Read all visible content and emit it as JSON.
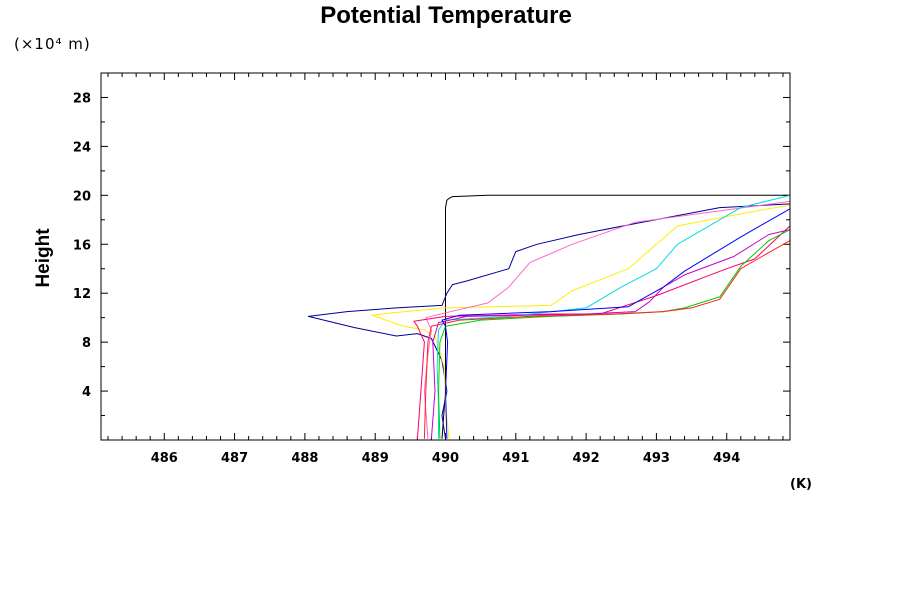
{
  "chart_data": {
    "type": "line",
    "title": "Potential Temperature",
    "ylabel": "Height",
    "y_unit_label": "(×10⁴ m)",
    "xlabel": "(K)",
    "xlim": [
      485.1,
      494.9
    ],
    "ylim": [
      0,
      30
    ],
    "x_ticks": [
      486,
      487,
      488,
      489,
      490,
      491,
      492,
      493,
      494
    ],
    "y_ticks": [
      4,
      8,
      12,
      16,
      20,
      24,
      28
    ],
    "legend": "none",
    "grid": false,
    "series": [
      {
        "color": "#000000",
        "x": [
          489.95,
          490.0,
          490.0,
          490.0,
          490.0,
          490.02,
          490.05,
          490.1,
          490.6,
          492.0,
          494.9
        ],
        "y": [
          0.1,
          4,
          9.0,
          11.5,
          19.0,
          19.6,
          19.75,
          19.9,
          20.0,
          20.0,
          20.0
        ]
      },
      {
        "color": "#000099",
        "x": [
          490.0,
          489.95,
          490.02,
          489.95,
          489.8,
          489.6,
          489.3,
          488.7,
          488.05,
          488.6,
          489.3,
          489.95,
          490.02,
          490.1,
          490.3,
          490.9,
          491.0,
          491.3,
          491.9,
          492.8,
          493.9,
          494.9
        ],
        "y": [
          0.1,
          2.0,
          4.0,
          6.5,
          8.3,
          8.7,
          8.5,
          9.2,
          10.1,
          10.5,
          10.8,
          11.0,
          12.0,
          12.7,
          13.0,
          14.0,
          15.4,
          16.0,
          16.8,
          17.8,
          19.0,
          19.3
        ]
      },
      {
        "color": "#ffee00",
        "x": [
          490.05,
          490.0,
          489.98,
          489.85,
          489.7,
          489.4,
          488.95,
          489.25,
          490.0,
          491.5,
          491.8,
          492.6,
          493.3,
          494.3,
          494.9
        ],
        "y": [
          0.1,
          3.0,
          6.0,
          8.5,
          9.0,
          9.3,
          10.2,
          10.4,
          10.8,
          11.0,
          12.2,
          14.0,
          17.5,
          18.6,
          19.2
        ]
      },
      {
        "color": "#ff66cc",
        "x": [
          489.75,
          489.7,
          489.75,
          489.8,
          489.72,
          490.0,
          490.6,
          490.9,
          491.2,
          491.8,
          492.7,
          494.9
        ],
        "y": [
          0.1,
          4.0,
          7.0,
          9.0,
          10.0,
          10.4,
          11.2,
          12.5,
          14.5,
          16.0,
          17.8,
          19.5
        ]
      },
      {
        "color": "#ff0066",
        "x": [
          489.6,
          489.65,
          489.7,
          489.6,
          489.55,
          490.0,
          491.5,
          492.2,
          493.0,
          494.0,
          494.4,
          494.9
        ],
        "y": [
          0.1,
          4.0,
          8.0,
          9.3,
          9.7,
          10.1,
          10.3,
          10.3,
          11.8,
          14.0,
          14.8,
          17.5
        ]
      },
      {
        "color": "#00dddd",
        "x": [
          489.9,
          489.9,
          489.88,
          489.9,
          490.0,
          490.9,
          492.0,
          492.5,
          493.0,
          493.3,
          494.2,
          494.9
        ],
        "y": [
          0.1,
          3.0,
          6.0,
          9.0,
          9.8,
          10.1,
          10.8,
          12.5,
          14.0,
          16.0,
          19.0,
          20.0
        ]
      },
      {
        "color": "#cc00cc",
        "x": [
          489.8,
          489.85,
          489.82,
          489.9,
          490.3,
          492.0,
          492.7,
          492.9,
          493.1,
          493.4,
          494.1,
          494.6,
          494.9
        ],
        "y": [
          0.1,
          4.0,
          8.0,
          9.6,
          10.1,
          10.3,
          10.5,
          11.3,
          12.5,
          13.5,
          15.0,
          16.8,
          17.2
        ]
      },
      {
        "color": "#00cc00",
        "x": [
          489.92,
          489.9,
          489.92,
          490.0,
          490.5,
          491.5,
          492.5,
          493.1,
          493.4,
          493.9,
          494.2,
          494.6,
          494.9
        ],
        "y": [
          0.1,
          4.0,
          8.0,
          9.3,
          9.8,
          10.1,
          10.3,
          10.5,
          10.8,
          11.7,
          14.2,
          16.3,
          17.2
        ]
      },
      {
        "color": "#ff2222",
        "x": [
          489.7,
          489.72,
          489.75,
          489.8,
          490.2,
          491.2,
          492.4,
          493.1,
          493.5,
          493.9,
          494.2,
          494.5,
          494.9
        ],
        "y": [
          0.1,
          4.0,
          8.0,
          9.3,
          9.8,
          10.1,
          10.3,
          10.5,
          10.8,
          11.5,
          14.0,
          15.0,
          16.3
        ]
      },
      {
        "color": "#0000ff",
        "x": [
          490.02,
          490.0,
          490.03,
          490.0,
          489.95,
          490.2,
          491.5,
          492.6,
          493.1,
          493.4,
          494.2,
          494.9
        ],
        "y": [
          0.1,
          4.0,
          8.0,
          9.3,
          9.8,
          10.2,
          10.5,
          10.9,
          12.5,
          13.8,
          16.6,
          18.9
        ]
      }
    ]
  }
}
